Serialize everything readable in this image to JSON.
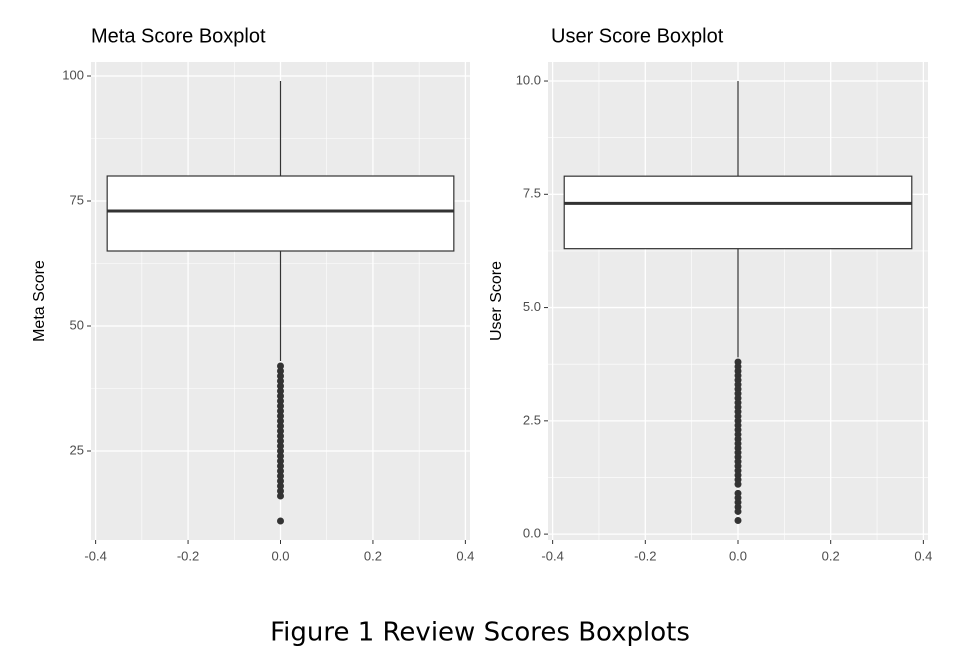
{
  "chart_data": [
    {
      "type": "box",
      "title": "Meta Score Boxplot",
      "y_label": "Meta Score",
      "box": {
        "x": 0,
        "width": 0.75,
        "whisker_low": 43,
        "q1": 65,
        "median": 73,
        "q3": 80,
        "whisker_high": 99
      },
      "outliers": [
        42,
        41,
        40,
        39,
        38,
        37,
        36,
        35,
        34,
        33,
        32,
        31,
        30,
        29,
        28,
        27,
        26,
        25,
        24,
        23,
        22,
        21,
        20,
        19,
        18,
        17,
        16,
        11
      ],
      "xlim": [
        -0.41,
        0.41
      ],
      "xticks": [
        -0.4,
        -0.2,
        {
          "value": 0,
          "label": "0.0"
        },
        0.2,
        0.4
      ],
      "ylim": [
        7.2,
        102.8
      ],
      "yticks": [
        25,
        50,
        75,
        100
      ],
      "grid": true
    },
    {
      "type": "box",
      "title": "User Score Boxplot",
      "y_label": "User Score",
      "box": {
        "x": 0,
        "width": 0.75,
        "whisker_low": 3.9,
        "q1": 6.3,
        "median": 7.3,
        "q3": 7.9,
        "whisker_high": 10
      },
      "outliers": [
        3.8,
        3.7,
        3.6,
        3.5,
        3.4,
        3.3,
        3.2,
        3.1,
        3.0,
        2.9,
        2.8,
        2.7,
        2.6,
        2.5,
        2.4,
        2.3,
        2.2,
        2.1,
        2.0,
        1.9,
        1.8,
        1.7,
        1.6,
        1.5,
        1.4,
        1.3,
        1.2,
        1.1,
        0.9,
        0.8,
        0.7,
        0.6,
        0.5,
        0.3
      ],
      "xlim": [
        -0.41,
        0.41
      ],
      "xticks": [
        -0.4,
        -0.2,
        {
          "value": 0,
          "label": "0.0"
        },
        0.2,
        0.4
      ],
      "ylim": [
        -0.13,
        10.42
      ],
      "yticks": [
        {
          "value": 0,
          "label": "0.0"
        },
        2.5,
        {
          "value": 5,
          "label": "5.0"
        },
        7.5,
        {
          "value": 10,
          "label": "10.0"
        }
      ],
      "grid": true
    }
  ],
  "caption": "Figure 1 Review Scores Boxplots"
}
